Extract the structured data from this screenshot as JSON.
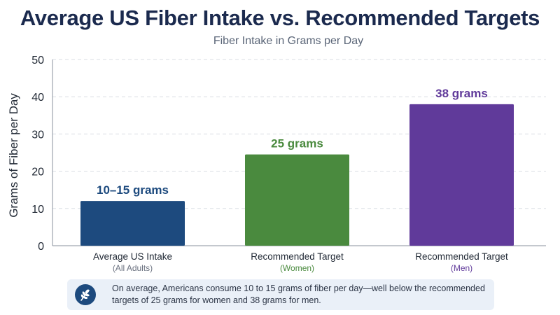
{
  "title": "Average US Fiber Intake vs. Recommended Targets",
  "subtitle": "Fiber Intake in Grams per Day",
  "chart_data": {
    "type": "bar",
    "title": "Average US Fiber Intake vs. Recommended Targets",
    "subtitle": "Fiber Intake in Grams per Day",
    "xlabel": "",
    "ylabel": "Grams of Fiber per Day",
    "ylim": [
      0,
      50
    ],
    "yticks": [
      0,
      10,
      20,
      30,
      40,
      50
    ],
    "grid": true,
    "categories": [
      "Average US Intake",
      "Recommended Target",
      "Recommended Target"
    ],
    "category_sublabels": [
      "(All Adults)",
      "(Women)",
      "(Men)"
    ],
    "values": [
      12,
      24.5,
      38
    ],
    "data_labels": [
      "10–15 grams",
      "25 grams",
      "38 grams"
    ],
    "colors": [
      "#1d4a7e",
      "#4a8a3e",
      "#603a9a"
    ]
  },
  "note": {
    "icon": "wheat-icon",
    "text": "On average, Americans consume 10 to 15 grams of fiber per day—well below the recommended targets of 25 grams for women and 38 grams for men."
  }
}
